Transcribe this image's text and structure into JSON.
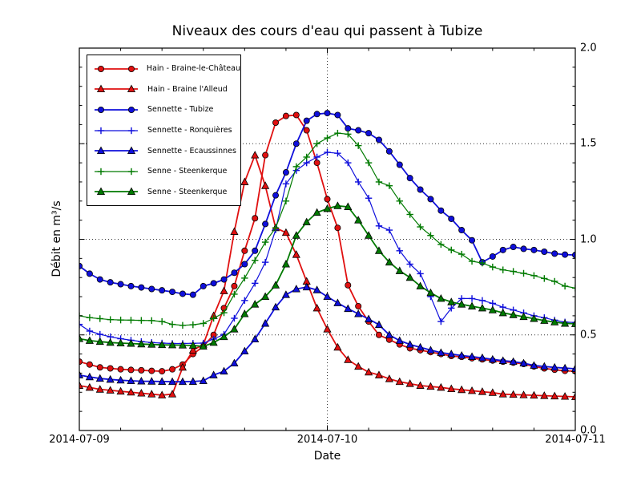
{
  "chart_data": {
    "type": "line",
    "title": "Niveaux des cours d'eau qui passent à Tubize",
    "xlabel": "Date",
    "ylabel": "Débit en m³/s",
    "x_tick_labels": [
      "2014-07-09",
      "2014-07-10",
      "2014-07-11"
    ],
    "x_major_tick_hours": [
      0,
      24,
      48
    ],
    "x_minor_tick_interval_hours": 4,
    "x_hours_range": [
      0,
      48
    ],
    "y_tick_labels": [
      "0.0",
      "0.5",
      "1.0",
      "1.5",
      "2.0"
    ],
    "y_tick_values": [
      0.0,
      0.5,
      1.0,
      1.5,
      2.0
    ],
    "y_minor_tick_interval": 0.1,
    "ylim": [
      0.0,
      2.0
    ],
    "grid": {
      "horizontal_at": [
        0.5,
        1.0,
        1.5
      ],
      "vertical_at_hours": [
        24
      ],
      "style": "dotted"
    },
    "legend_position": "upper left",
    "marker_interval_hours": 1,
    "colors": {
      "red": "#e01010",
      "blue": "#0f0fdc",
      "green": "#007a00"
    },
    "series": [
      {
        "name": "Hain - Braine-le-Château",
        "color_key": "red",
        "marker": "circle",
        "values": [
          0.36,
          0.345,
          0.33,
          0.325,
          0.32,
          0.317,
          0.315,
          0.312,
          0.31,
          0.32,
          0.345,
          0.4,
          0.44,
          0.5,
          0.64,
          0.755,
          0.94,
          1.11,
          1.44,
          1.61,
          1.645,
          1.65,
          1.57,
          1.4,
          1.21,
          1.06,
          0.76,
          0.65,
          0.57,
          0.5,
          0.475,
          0.45,
          0.43,
          0.42,
          0.41,
          0.4,
          0.39,
          0.385,
          0.378,
          0.372,
          0.366,
          0.36,
          0.355,
          0.348,
          0.335,
          0.325,
          0.318,
          0.312,
          0.31
        ]
      },
      {
        "name": "Hain - Braine l'Alleud",
        "color_key": "red",
        "marker": "triangle",
        "values": [
          0.235,
          0.225,
          0.215,
          0.21,
          0.205,
          0.2,
          0.195,
          0.19,
          0.185,
          0.19,
          0.33,
          0.42,
          0.45,
          0.6,
          0.73,
          1.04,
          1.3,
          1.44,
          1.28,
          1.06,
          1.035,
          0.92,
          0.78,
          0.64,
          0.53,
          0.435,
          0.37,
          0.335,
          0.305,
          0.29,
          0.27,
          0.255,
          0.245,
          0.235,
          0.23,
          0.225,
          0.218,
          0.213,
          0.208,
          0.203,
          0.198,
          0.19,
          0.188,
          0.186,
          0.184,
          0.182,
          0.18,
          0.178,
          0.176
        ]
      },
      {
        "name": "Sennette - Tubize",
        "color_key": "blue",
        "marker": "circle",
        "values": [
          0.86,
          0.82,
          0.79,
          0.775,
          0.765,
          0.755,
          0.748,
          0.74,
          0.733,
          0.725,
          0.715,
          0.71,
          0.755,
          0.77,
          0.79,
          0.825,
          0.87,
          0.94,
          1.08,
          1.23,
          1.35,
          1.5,
          1.62,
          1.655,
          1.66,
          1.65,
          1.58,
          1.57,
          1.555,
          1.52,
          1.46,
          1.39,
          1.32,
          1.26,
          1.21,
          1.15,
          1.107,
          1.048,
          0.995,
          0.88,
          0.91,
          0.944,
          0.96,
          0.95,
          0.944,
          0.935,
          0.925,
          0.92,
          0.918
        ]
      },
      {
        "name": "Sennette - Ronquières",
        "color_key": "blue",
        "marker": "plus",
        "values": [
          0.555,
          0.52,
          0.503,
          0.49,
          0.48,
          0.472,
          0.465,
          0.46,
          0.457,
          0.455,
          0.455,
          0.456,
          0.457,
          0.478,
          0.503,
          0.587,
          0.68,
          0.77,
          0.88,
          1.05,
          1.29,
          1.36,
          1.4,
          1.43,
          1.455,
          1.45,
          1.4,
          1.3,
          1.215,
          1.07,
          1.048,
          0.94,
          0.87,
          0.82,
          0.7,
          0.57,
          0.64,
          0.69,
          0.69,
          0.68,
          0.665,
          0.645,
          0.63,
          0.615,
          0.6,
          0.59,
          0.577,
          0.567,
          0.565
        ]
      },
      {
        "name": "Sennette - Ecaussinnes",
        "color_key": "blue",
        "marker": "triangle",
        "values": [
          0.29,
          0.28,
          0.272,
          0.267,
          0.263,
          0.26,
          0.258,
          0.257,
          0.256,
          0.255,
          0.255,
          0.256,
          0.26,
          0.29,
          0.31,
          0.352,
          0.415,
          0.478,
          0.56,
          0.645,
          0.71,
          0.74,
          0.75,
          0.735,
          0.7,
          0.667,
          0.637,
          0.61,
          0.583,
          0.553,
          0.5,
          0.47,
          0.45,
          0.435,
          0.42,
          0.407,
          0.4,
          0.392,
          0.386,
          0.38,
          0.372,
          0.365,
          0.36,
          0.352,
          0.34,
          0.335,
          0.33,
          0.326,
          0.323
        ]
      },
      {
        "name": "Senne - Steenkerque",
        "color_key": "green",
        "marker": "plus",
        "values": [
          0.6,
          0.59,
          0.585,
          0.58,
          0.578,
          0.577,
          0.576,
          0.575,
          0.57,
          0.555,
          0.55,
          0.553,
          0.56,
          0.587,
          0.616,
          0.713,
          0.797,
          0.89,
          0.985,
          1.06,
          1.2,
          1.38,
          1.43,
          1.5,
          1.53,
          1.555,
          1.55,
          1.49,
          1.4,
          1.3,
          1.28,
          1.2,
          1.13,
          1.065,
          1.02,
          0.973,
          0.944,
          0.922,
          0.885,
          0.876,
          0.855,
          0.84,
          0.832,
          0.822,
          0.81,
          0.795,
          0.78,
          0.755,
          0.745
        ]
      },
      {
        "name": "Senne - Steenkerque",
        "color_key": "green",
        "marker": "triangle",
        "values": [
          0.48,
          0.47,
          0.465,
          0.46,
          0.457,
          0.455,
          0.452,
          0.45,
          0.448,
          0.447,
          0.446,
          0.445,
          0.44,
          0.46,
          0.49,
          0.53,
          0.61,
          0.66,
          0.7,
          0.76,
          0.87,
          1.02,
          1.09,
          1.14,
          1.16,
          1.175,
          1.17,
          1.1,
          1.02,
          0.94,
          0.88,
          0.835,
          0.8,
          0.755,
          0.72,
          0.69,
          0.672,
          0.66,
          0.65,
          0.64,
          0.63,
          0.615,
          0.605,
          0.595,
          0.585,
          0.575,
          0.567,
          0.56,
          0.558
        ]
      }
    ]
  }
}
